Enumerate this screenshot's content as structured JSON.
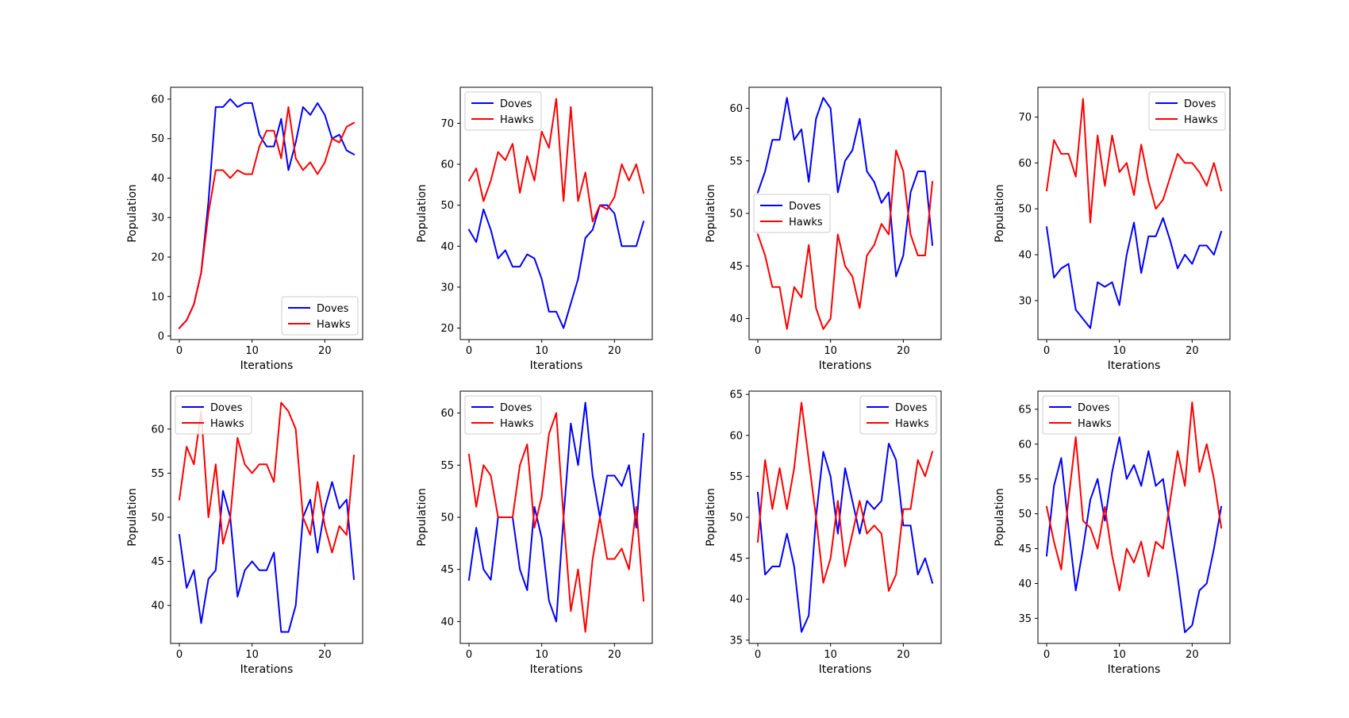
{
  "chart_data": [
    {
      "type": "line",
      "xlabel": "Iterations",
      "ylabel": "Population",
      "xlim": [
        -1.2,
        25.2
      ],
      "ylim": [
        -0.9,
        63
      ],
      "x_ticks": [
        0,
        10,
        20
      ],
      "y_ticks": [
        0,
        10,
        20,
        30,
        40,
        50,
        60
      ],
      "legend": "bottom-right",
      "x": [
        0,
        1,
        2,
        3,
        4,
        5,
        6,
        7,
        8,
        9,
        10,
        11,
        12,
        13,
        14,
        15,
        16,
        17,
        18,
        19,
        20,
        21,
        22,
        23,
        24
      ],
      "series": [
        {
          "name": "Doves",
          "color": "#0000ff",
          "values": [
            2,
            4,
            8,
            16,
            34,
            58,
            58,
            60,
            58,
            59,
            59,
            51,
            48,
            48,
            55,
            42,
            49,
            58,
            56,
            59,
            56,
            50,
            51,
            47,
            46
          ]
        },
        {
          "name": "Hawks",
          "color": "#ff0000",
          "values": [
            2,
            4,
            8,
            16,
            31,
            42,
            42,
            40,
            42,
            41,
            41,
            48,
            52,
            52,
            45,
            58,
            45,
            42,
            44,
            41,
            44,
            50,
            49,
            53,
            54
          ]
        }
      ]
    },
    {
      "type": "line",
      "xlabel": "Iterations",
      "ylabel": "Population",
      "xlim": [
        -1.2,
        25.2
      ],
      "ylim": [
        17.2,
        78.8
      ],
      "x_ticks": [
        0,
        10,
        20
      ],
      "y_ticks": [
        20,
        30,
        40,
        50,
        60,
        70
      ],
      "legend": "top-left",
      "x": [
        0,
        1,
        2,
        3,
        4,
        5,
        6,
        7,
        8,
        9,
        10,
        11,
        12,
        13,
        14,
        15,
        16,
        17,
        18,
        19,
        20,
        21,
        22,
        23,
        24
      ],
      "series": [
        {
          "name": "Doves",
          "color": "#0000ff",
          "values": [
            44,
            41,
            49,
            44,
            37,
            39,
            35,
            35,
            38,
            37,
            32,
            24,
            24,
            20,
            26,
            32,
            42,
            44,
            50,
            50,
            48,
            40,
            40,
            40,
            46
          ]
        },
        {
          "name": "Hawks",
          "color": "#ff0000",
          "values": [
            56,
            59,
            51,
            56,
            63,
            61,
            65,
            53,
            62,
            56,
            68,
            64,
            76,
            51,
            74,
            51,
            58,
            46,
            50,
            49,
            52,
            60,
            56,
            60,
            53
          ]
        }
      ]
    },
    {
      "type": "line",
      "xlabel": "Iterations",
      "ylabel": "Population",
      "xlim": [
        -1.2,
        25.2
      ],
      "ylim": [
        38.0,
        62.0
      ],
      "x_ticks": [
        0,
        10,
        20
      ],
      "y_ticks": [
        40,
        45,
        50,
        55,
        60
      ],
      "legend": "center-left",
      "x": [
        0,
        1,
        2,
        3,
        4,
        5,
        6,
        7,
        8,
        9,
        10,
        11,
        12,
        13,
        14,
        15,
        16,
        17,
        18,
        19,
        20,
        21,
        22,
        23,
        24
      ],
      "series": [
        {
          "name": "Doves",
          "color": "#0000ff",
          "values": [
            52,
            54,
            57,
            57,
            61,
            57,
            58,
            53,
            59,
            61,
            60,
            52,
            55,
            56,
            59,
            54,
            53,
            51,
            52,
            44,
            46,
            52,
            54,
            54,
            47
          ]
        },
        {
          "name": "Hawks",
          "color": "#ff0000",
          "values": [
            48,
            46,
            43,
            43,
            39,
            43,
            42,
            47,
            41,
            39,
            40,
            48,
            45,
            44,
            41,
            46,
            47,
            49,
            48,
            56,
            54,
            48,
            46,
            46,
            53
          ]
        }
      ]
    },
    {
      "type": "line",
      "xlabel": "Iterations",
      "ylabel": "Population",
      "xlim": [
        -1.2,
        25.2
      ],
      "ylim": [
        21.5,
        76.5
      ],
      "x_ticks": [
        0,
        10,
        20
      ],
      "y_ticks": [
        30,
        40,
        50,
        60,
        70
      ],
      "legend": "top-right",
      "x": [
        0,
        1,
        2,
        3,
        4,
        5,
        6,
        7,
        8,
        9,
        10,
        11,
        12,
        13,
        14,
        15,
        16,
        17,
        18,
        19,
        20,
        21,
        22,
        23,
        24
      ],
      "series": [
        {
          "name": "Doves",
          "color": "#0000ff",
          "values": [
            46,
            35,
            37,
            38,
            28,
            26,
            24,
            34,
            33,
            34,
            29,
            40,
            47,
            36,
            44,
            44,
            48,
            43,
            37,
            40,
            38,
            42,
            42,
            40,
            45
          ]
        },
        {
          "name": "Hawks",
          "color": "#ff0000",
          "values": [
            54,
            65,
            62,
            62,
            57,
            74,
            47,
            66,
            55,
            66,
            58,
            60,
            53,
            64,
            56,
            50,
            52,
            57,
            62,
            60,
            60,
            58,
            55,
            60,
            54
          ]
        }
      ]
    },
    {
      "type": "line",
      "xlabel": "Iterations",
      "ylabel": "Population",
      "xlim": [
        -1.2,
        25.2
      ],
      "ylim": [
        35.7,
        64.3
      ],
      "x_ticks": [
        0,
        10,
        20
      ],
      "y_ticks": [
        40,
        45,
        50,
        55,
        60
      ],
      "legend": "top-left",
      "x": [
        0,
        1,
        2,
        3,
        4,
        5,
        6,
        7,
        8,
        9,
        10,
        11,
        12,
        13,
        14,
        15,
        16,
        17,
        18,
        19,
        20,
        21,
        22,
        23,
        24
      ],
      "series": [
        {
          "name": "Doves",
          "color": "#0000ff",
          "values": [
            48,
            42,
            44,
            38,
            43,
            44,
            53,
            50,
            41,
            44,
            45,
            44,
            44,
            46,
            37,
            37,
            40,
            50,
            52,
            46,
            51,
            54,
            51,
            52,
            43
          ]
        },
        {
          "name": "Hawks",
          "color": "#ff0000",
          "values": [
            52,
            58,
            56,
            62,
            50,
            56,
            47,
            50,
            59,
            56,
            55,
            56,
            56,
            54,
            63,
            62,
            60,
            50,
            48,
            54,
            49,
            46,
            49,
            48,
            57
          ]
        }
      ]
    },
    {
      "type": "line",
      "xlabel": "Iterations",
      "ylabel": "Population",
      "xlim": [
        -1.2,
        25.2
      ],
      "ylim": [
        37.9,
        62.1
      ],
      "x_ticks": [
        0,
        10,
        20
      ],
      "y_ticks": [
        40,
        45,
        50,
        55,
        60
      ],
      "legend": "top-left",
      "x": [
        0,
        1,
        2,
        3,
        4,
        5,
        6,
        7,
        8,
        9,
        10,
        11,
        12,
        13,
        14,
        15,
        16,
        17,
        18,
        19,
        20,
        21,
        22,
        23,
        24
      ],
      "series": [
        {
          "name": "Doves",
          "color": "#0000ff",
          "values": [
            44,
            49,
            45,
            44,
            50,
            50,
            50,
            45,
            43,
            51,
            48,
            42,
            40,
            50,
            59,
            55,
            61,
            54,
            50,
            54,
            54,
            53,
            55,
            49,
            58
          ]
        },
        {
          "name": "Hawks",
          "color": "#ff0000",
          "values": [
            56,
            51,
            55,
            54,
            50,
            50,
            50,
            55,
            57,
            49,
            52,
            58,
            60,
            50,
            41,
            45,
            39,
            46,
            50,
            46,
            46,
            47,
            45,
            51,
            42
          ]
        }
      ]
    },
    {
      "type": "line",
      "xlabel": "Iterations",
      "ylabel": "Population",
      "xlim": [
        -1.2,
        25.2
      ],
      "ylim": [
        34.6,
        65.4
      ],
      "x_ticks": [
        0,
        10,
        20
      ],
      "y_ticks": [
        35,
        40,
        45,
        50,
        55,
        60,
        65
      ],
      "legend": "top-right",
      "x": [
        0,
        1,
        2,
        3,
        4,
        5,
        6,
        7,
        8,
        9,
        10,
        11,
        12,
        13,
        14,
        15,
        16,
        17,
        18,
        19,
        20,
        21,
        22,
        23,
        24
      ],
      "series": [
        {
          "name": "Doves",
          "color": "#0000ff",
          "values": [
            53,
            43,
            44,
            44,
            48,
            44,
            36,
            38,
            50,
            58,
            55,
            48,
            56,
            52,
            48,
            52,
            51,
            52,
            59,
            57,
            49,
            49,
            43,
            45,
            42
          ]
        },
        {
          "name": "Hawks",
          "color": "#ff0000",
          "values": [
            47,
            57,
            51,
            56,
            51,
            56,
            64,
            57,
            50,
            42,
            45,
            52,
            44,
            48,
            52,
            48,
            49,
            48,
            41,
            43,
            51,
            51,
            57,
            55,
            58
          ]
        }
      ]
    },
    {
      "type": "line",
      "xlabel": "Iterations",
      "ylabel": "Population",
      "xlim": [
        -1.2,
        25.2
      ],
      "ylim": [
        31.4,
        67.6
      ],
      "x_ticks": [
        0,
        10,
        20
      ],
      "y_ticks": [
        35,
        40,
        45,
        50,
        55,
        60,
        65
      ],
      "legend": "top-left",
      "x": [
        0,
        1,
        2,
        3,
        4,
        5,
        6,
        7,
        8,
        9,
        10,
        11,
        12,
        13,
        14,
        15,
        16,
        17,
        18,
        19,
        20,
        21,
        22,
        23,
        24
      ],
      "series": [
        {
          "name": "Doves",
          "color": "#0000ff",
          "values": [
            44,
            54,
            58,
            48,
            39,
            45,
            52,
            55,
            49,
            56,
            61,
            55,
            57,
            54,
            59,
            54,
            55,
            48,
            41,
            33,
            34,
            39,
            40,
            45,
            51
          ]
        },
        {
          "name": "Hawks",
          "color": "#ff0000",
          "values": [
            51,
            46,
            42,
            52,
            61,
            49,
            48,
            45,
            51,
            44,
            39,
            45,
            43,
            46,
            41,
            46,
            45,
            52,
            59,
            54,
            66,
            56,
            60,
            55,
            48
          ]
        }
      ]
    }
  ]
}
